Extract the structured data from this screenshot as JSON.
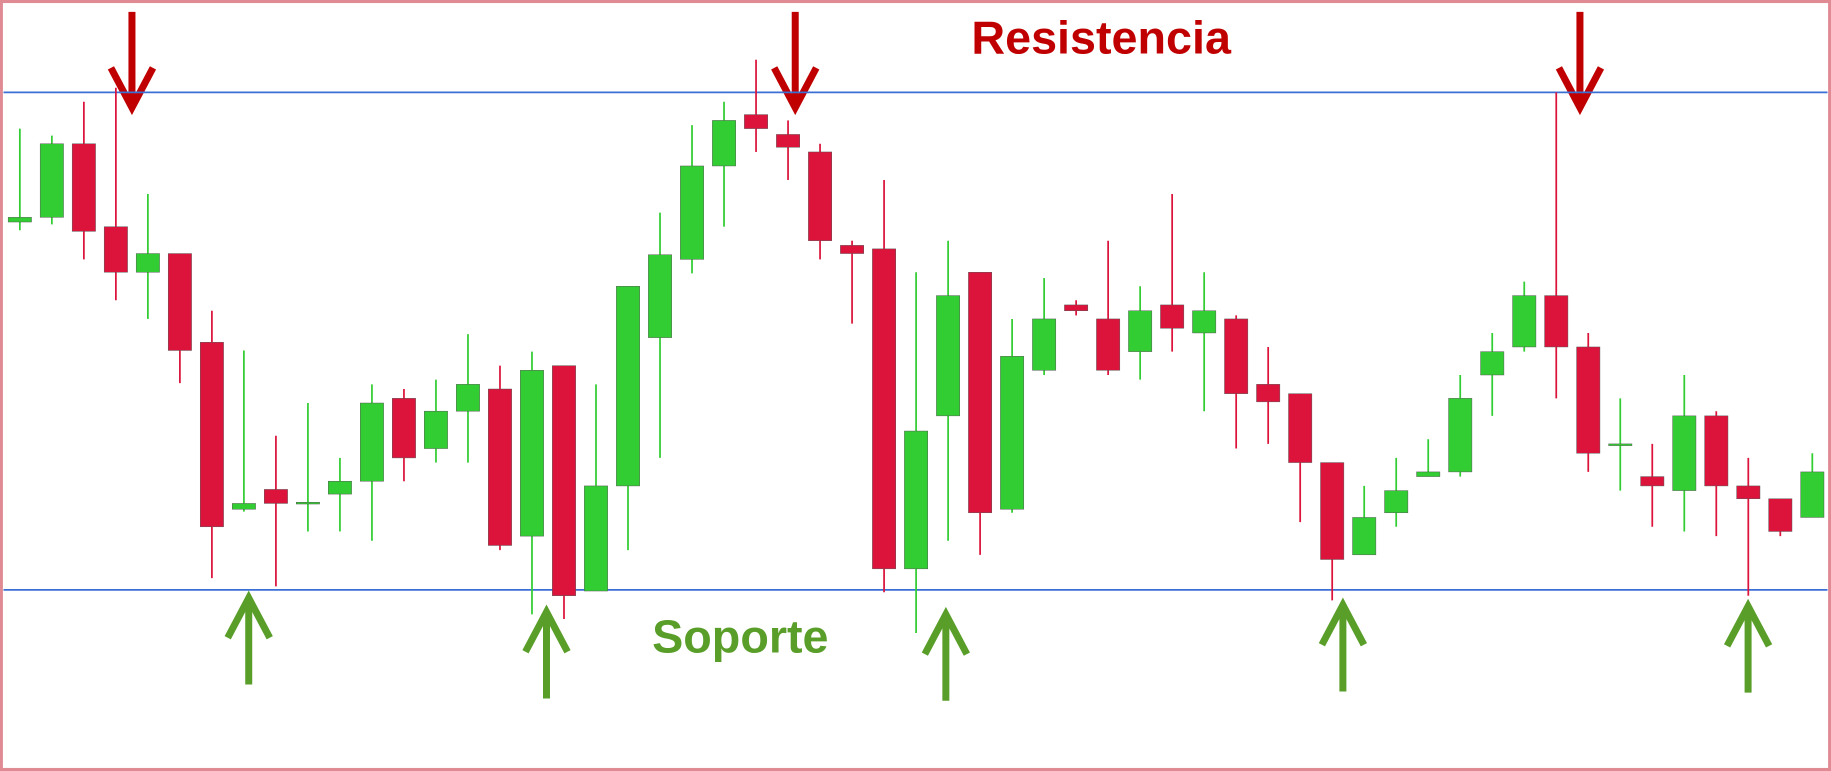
{
  "chart_data": {
    "type": "candlestick",
    "up_color": "#32cd32",
    "down_color": "#dc143c",
    "ylim": [
      0,
      660
    ],
    "resistance": {
      "label": "Resistencia",
      "value": 581,
      "color": "#3a6fd6",
      "label_color": "#c00000"
    },
    "support": {
      "label": "Soporte",
      "value": 155,
      "color": "#3a6fd6",
      "label_color": "#5a9e2a"
    },
    "open": [
      470,
      474,
      537,
      466,
      427,
      443,
      367,
      224,
      241,
      229,
      237,
      248,
      319,
      276,
      308,
      327,
      201,
      347,
      154,
      244,
      371,
      438,
      518,
      562,
      545,
      530,
      450,
      447,
      173,
      304,
      427,
      224,
      343,
      399,
      387,
      359,
      399,
      375,
      387,
      331,
      323,
      264,
      185,
      221,
      252,
      256,
      339,
      363,
      407,
      363,
      279,
      252,
      240,
      304,
      244,
      233,
      217
    ],
    "high": [
      550,
      544,
      573,
      585,
      494,
      443,
      394,
      360,
      287,
      315,
      268,
      331,
      327,
      335,
      374,
      347,
      359,
      347,
      331,
      415,
      478,
      553,
      573,
      609,
      557,
      537,
      454,
      506,
      427,
      454,
      427,
      387,
      422,
      403,
      454,
      415,
      494,
      427,
      390,
      363,
      323,
      264,
      244,
      268,
      284,
      339,
      375,
      419,
      581,
      375,
      319,
      280,
      339,
      308,
      268,
      233,
      272
    ],
    "low": [
      463,
      468,
      438,
      403,
      387,
      332,
      165,
      222,
      158,
      205,
      205,
      197,
      248,
      264,
      264,
      189,
      134,
      130,
      154,
      189,
      268,
      426,
      466,
      530,
      506,
      438,
      383,
      153,
      118,
      197,
      185,
      221,
      339,
      390,
      339,
      335,
      359,
      308,
      276,
      280,
      213,
      146,
      185,
      209,
      252,
      252,
      304,
      359,
      319,
      256,
      240,
      209,
      205,
      201,
      150,
      201,
      217
    ],
    "close": [
      474,
      537,
      462,
      427,
      443,
      360,
      209,
      229,
      229,
      230,
      248,
      315,
      268,
      308,
      331,
      193,
      343,
      150,
      244,
      415,
      442,
      518,
      557,
      550,
      534,
      454,
      443,
      173,
      291,
      407,
      221,
      355,
      387,
      394,
      343,
      394,
      379,
      394,
      323,
      316,
      264,
      181,
      217,
      240,
      256,
      319,
      359,
      407,
      363,
      272,
      280,
      244,
      304,
      244,
      233,
      205,
      256
    ]
  }
}
